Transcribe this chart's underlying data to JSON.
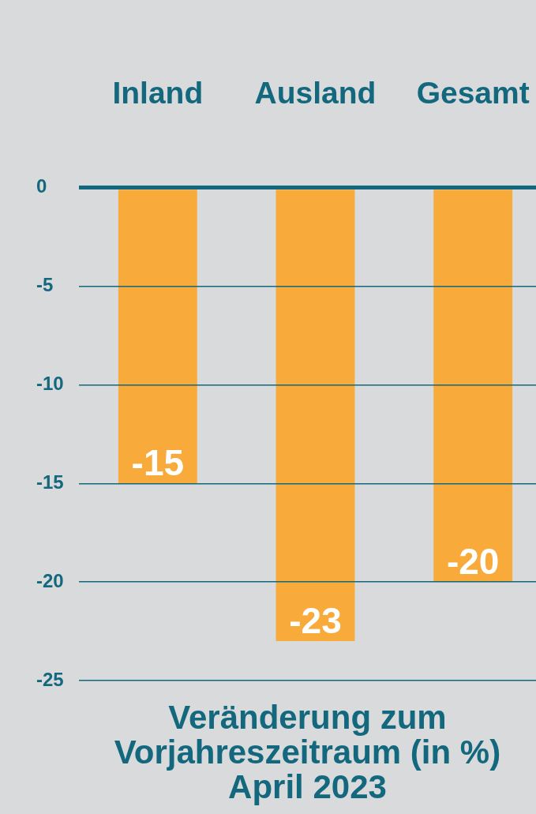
{
  "chart_data": {
    "type": "bar",
    "title": "Veränderung zum Vorjahreszeitraum (in %)",
    "subtitle": "April 2023",
    "categories": [
      "Inland",
      "Ausland",
      "Gesamt"
    ],
    "values": [
      -15,
      -23,
      -20
    ],
    "color": "#f8aa3a",
    "ylim": [
      -25,
      0
    ],
    "yticks": [
      0,
      -5,
      -10,
      -15,
      -20,
      -25
    ],
    "grid": "y",
    "data_labels": true
  }
}
